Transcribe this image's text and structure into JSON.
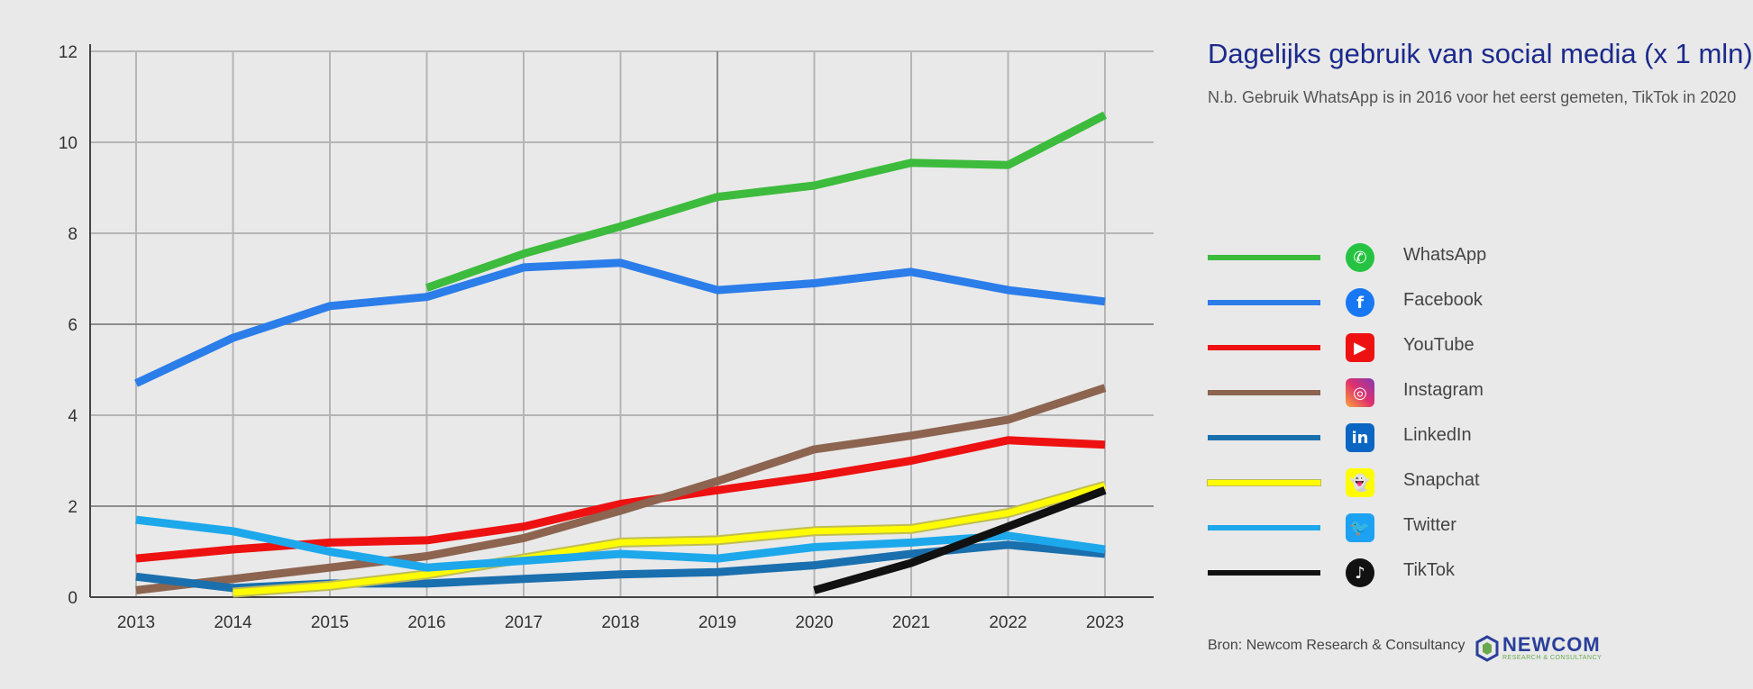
{
  "chart_data": {
    "type": "line",
    "title": "Dagelijks gebruik van social media (x 1 mln)",
    "subtitle": "N.b. Gebruik WhatsApp is in 2016 voor het eerst gemeten, TikTok in 2020",
    "x": [
      2013,
      2014,
      2015,
      2016,
      2017,
      2018,
      2019,
      2020,
      2021,
      2022,
      2023
    ],
    "x_tick_labels": [
      "2013",
      "2014",
      "2015",
      "2016",
      "2017",
      "2018",
      "2019",
      "2020",
      "2021",
      "2022",
      "2023"
    ],
    "ylim": [
      0,
      12
    ],
    "y_ticks": [
      0,
      2,
      4,
      6,
      8,
      10,
      12
    ],
    "y_tick_labels": [
      "0",
      "2",
      "4",
      "6",
      "8",
      "10",
      "12"
    ],
    "grid": true,
    "legend_position": "right",
    "series": [
      {
        "name": "WhatsApp",
        "color": "#3dbb3d",
        "icon": "whatsapp-icon",
        "values": [
          null,
          null,
          null,
          6.8,
          7.55,
          8.15,
          8.8,
          9.05,
          9.55,
          9.5,
          10.6
        ]
      },
      {
        "name": "Facebook",
        "color": "#2b7de9",
        "icon": "facebook-icon",
        "values": [
          4.7,
          5.7,
          6.4,
          6.6,
          7.25,
          7.35,
          6.75,
          6.9,
          7.15,
          6.75,
          6.5
        ]
      },
      {
        "name": "YouTube",
        "color": "#ee1111",
        "icon": "youtube-icon",
        "values": [
          0.85,
          1.05,
          1.2,
          1.25,
          1.55,
          2.05,
          2.35,
          2.65,
          3.0,
          3.45,
          3.35
        ]
      },
      {
        "name": "Instagram",
        "color": "#8c6450",
        "icon": "instagram-icon",
        "values": [
          0.15,
          0.4,
          0.65,
          0.9,
          1.3,
          1.9,
          2.55,
          3.25,
          3.55,
          3.9,
          4.6
        ]
      },
      {
        "name": "LinkedIn",
        "color": "#1a6fae",
        "icon": "linkedin-icon",
        "values": [
          0.45,
          0.2,
          0.3,
          0.3,
          0.4,
          0.5,
          0.55,
          0.7,
          0.95,
          1.15,
          0.95
        ]
      },
      {
        "name": "Snapchat",
        "color": "#fffc00",
        "icon": "snapchat-icon",
        "values": [
          null,
          0.1,
          0.25,
          0.5,
          0.85,
          1.2,
          1.25,
          1.45,
          1.5,
          1.85,
          2.45
        ]
      },
      {
        "name": "Twitter",
        "color": "#1da8ec",
        "icon": "twitter-icon",
        "values": [
          1.7,
          1.45,
          1.0,
          0.65,
          0.8,
          0.95,
          0.85,
          1.1,
          1.2,
          1.35,
          1.05
        ]
      },
      {
        "name": "TikTok",
        "color": "#111111",
        "icon": "tiktok-icon",
        "values": [
          null,
          null,
          null,
          null,
          null,
          null,
          null,
          0.15,
          0.75,
          1.55,
          2.35
        ]
      }
    ]
  },
  "source": "Bron: Newcom Research & Consultancy",
  "logo": {
    "name": "NEWCOM",
    "tagline": "RESEARCH & CONSULTANCY"
  }
}
